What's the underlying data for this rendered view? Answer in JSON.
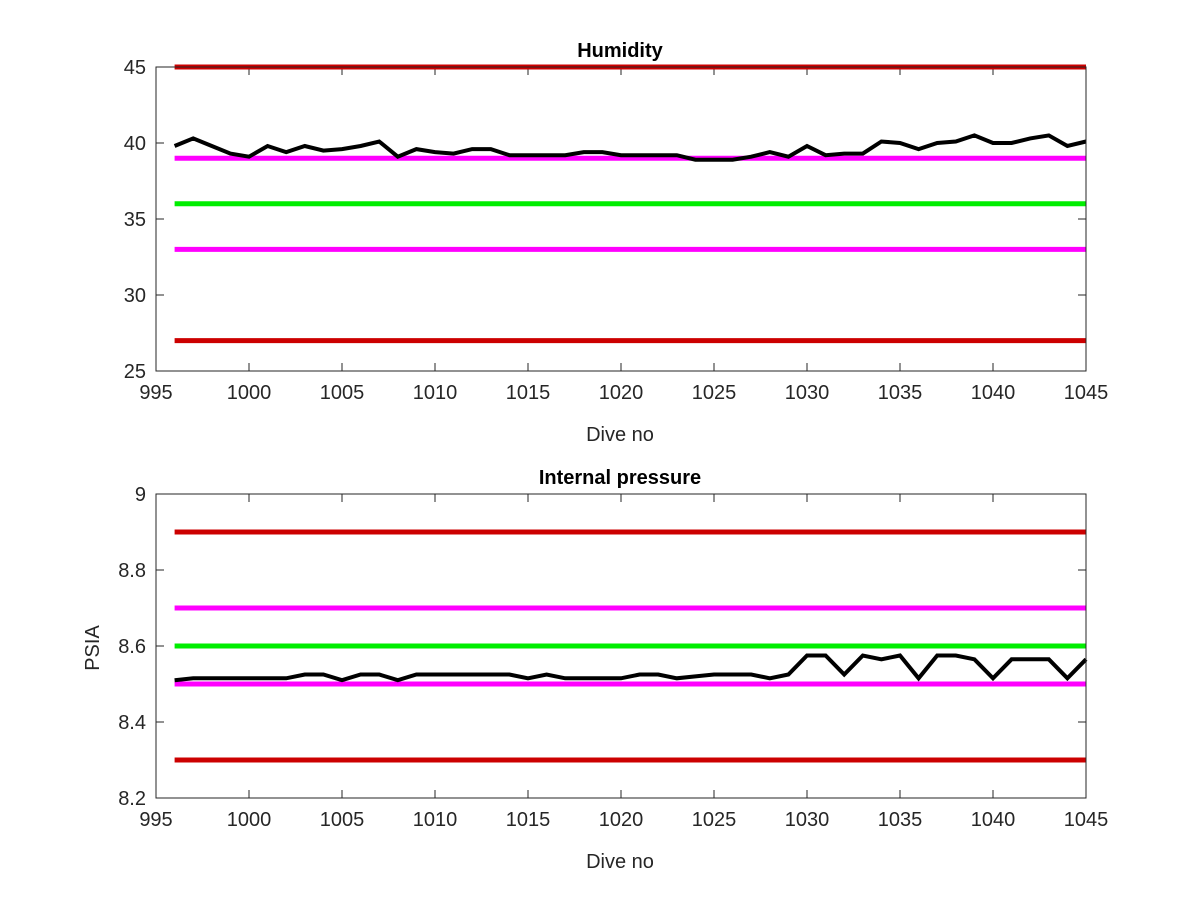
{
  "chart_data": [
    {
      "type": "line",
      "title": "Humidity",
      "xlabel": "Dive no",
      "ylabel": "",
      "xlim": [
        995,
        1045
      ],
      "ylim": [
        25,
        45
      ],
      "x_ticks": [
        "995",
        "1000",
        "1005",
        "1010",
        "1015",
        "1020",
        "1025",
        "1030",
        "1035",
        "1040",
        "1045"
      ],
      "y_ticks": [
        "25",
        "30",
        "35",
        "40",
        "45"
      ],
      "grid": false,
      "reference_lines": [
        {
          "value": 45,
          "color": "#cc0000"
        },
        {
          "value": 39,
          "color": "#ff00ff"
        },
        {
          "value": 36,
          "color": "#00ee00"
        },
        {
          "value": 33,
          "color": "#ff00ff"
        },
        {
          "value": 27,
          "color": "#cc0000"
        }
      ],
      "series": [
        {
          "color": "#000000",
          "x": [
            996,
            997,
            998,
            999,
            1000,
            1001,
            1002,
            1003,
            1004,
            1005,
            1006,
            1007,
            1008,
            1009,
            1010,
            1011,
            1012,
            1013,
            1014,
            1015,
            1016,
            1017,
            1018,
            1019,
            1020,
            1021,
            1022,
            1023,
            1024,
            1025,
            1026,
            1027,
            1028,
            1029,
            1030,
            1031,
            1032,
            1033,
            1034,
            1035,
            1036,
            1037,
            1038,
            1039,
            1040,
            1041,
            1042,
            1043,
            1044,
            1045
          ],
          "values": [
            39.8,
            40.3,
            39.8,
            39.3,
            39.1,
            39.8,
            39.4,
            39.8,
            39.5,
            39.6,
            39.8,
            40.1,
            39.1,
            39.6,
            39.4,
            39.3,
            39.6,
            39.6,
            39.2,
            39.2,
            39.2,
            39.2,
            39.4,
            39.4,
            39.2,
            39.2,
            39.2,
            39.2,
            38.9,
            38.9,
            38.9,
            39.1,
            39.4,
            39.1,
            39.8,
            39.2,
            39.3,
            39.3,
            40.1,
            40.0,
            39.6,
            40.0,
            40.1,
            40.5,
            40.0,
            40.0,
            40.3,
            40.5,
            39.8,
            40.1
          ]
        }
      ]
    },
    {
      "type": "line",
      "title": "Internal pressure",
      "xlabel": "Dive no",
      "ylabel": "PSIA",
      "xlim": [
        995,
        1045
      ],
      "ylim": [
        8.2,
        9
      ],
      "x_ticks": [
        "995",
        "1000",
        "1005",
        "1010",
        "1015",
        "1020",
        "1025",
        "1030",
        "1035",
        "1040",
        "1045"
      ],
      "y_ticks": [
        "8.2",
        "8.4",
        "8.6",
        "8.8",
        "9"
      ],
      "grid": false,
      "reference_lines": [
        {
          "value": 8.9,
          "color": "#cc0000"
        },
        {
          "value": 8.7,
          "color": "#ff00ff"
        },
        {
          "value": 8.6,
          "color": "#00ee00"
        },
        {
          "value": 8.5,
          "color": "#ff00ff"
        },
        {
          "value": 8.3,
          "color": "#cc0000"
        }
      ],
      "series": [
        {
          "color": "#000000",
          "x": [
            996,
            997,
            998,
            999,
            1000,
            1001,
            1002,
            1003,
            1004,
            1005,
            1006,
            1007,
            1008,
            1009,
            1010,
            1011,
            1012,
            1013,
            1014,
            1015,
            1016,
            1017,
            1018,
            1019,
            1020,
            1021,
            1022,
            1023,
            1024,
            1025,
            1026,
            1027,
            1028,
            1029,
            1030,
            1031,
            1032,
            1033,
            1034,
            1035,
            1036,
            1037,
            1038,
            1039,
            1040,
            1041,
            1042,
            1043,
            1044,
            1045
          ],
          "values": [
            8.51,
            8.515,
            8.515,
            8.515,
            8.515,
            8.515,
            8.515,
            8.525,
            8.525,
            8.51,
            8.525,
            8.525,
            8.51,
            8.525,
            8.525,
            8.525,
            8.525,
            8.525,
            8.525,
            8.515,
            8.525,
            8.515,
            8.515,
            8.515,
            8.515,
            8.525,
            8.525,
            8.515,
            8.52,
            8.525,
            8.525,
            8.525,
            8.515,
            8.525,
            8.575,
            8.575,
            8.525,
            8.575,
            8.565,
            8.575,
            8.515,
            8.575,
            8.575,
            8.565,
            8.515,
            8.565,
            8.565,
            8.565,
            8.515,
            8.565
          ]
        }
      ]
    }
  ]
}
